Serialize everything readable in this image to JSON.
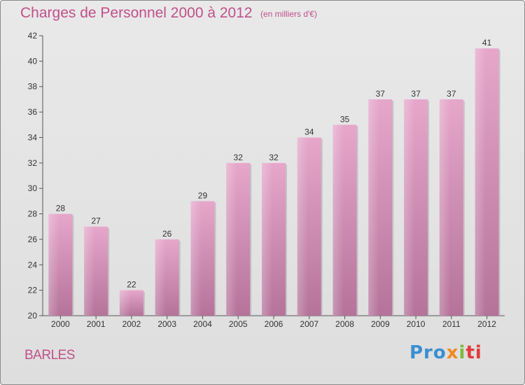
{
  "chart_data": {
    "type": "bar",
    "title": "Charges de Personnel 2000 à 2012",
    "subtitle": "(en milliers d'€)",
    "categories": [
      "2000",
      "2001",
      "2002",
      "2003",
      "2004",
      "2005",
      "2006",
      "2007",
      "2008",
      "2009",
      "2010",
      "2011",
      "2012"
    ],
    "values": [
      28,
      27,
      22,
      26,
      29,
      32,
      32,
      34,
      35,
      37,
      37,
      37,
      41
    ],
    "data_labels": [
      "28",
      "27",
      "22",
      "26",
      "29",
      "32",
      "32",
      "34",
      "35",
      "37",
      "37",
      "37",
      "41"
    ],
    "ylim": [
      20,
      42
    ],
    "yticks": [
      20,
      22,
      24,
      26,
      28,
      30,
      32,
      34,
      36,
      38,
      40,
      42
    ],
    "xlabel": "",
    "ylabel": "",
    "grid": false,
    "bar_color": "#d98fb8"
  },
  "footer": {
    "place": "BARLES",
    "logo": [
      "Pro",
      "x",
      "i",
      "ti"
    ]
  },
  "colors": {
    "title": "#c0508a",
    "logo_blue": "#3a8fd1",
    "logo_orange": "#f18a21",
    "logo_green": "#7cb83b",
    "logo_red": "#e23b3b"
  }
}
